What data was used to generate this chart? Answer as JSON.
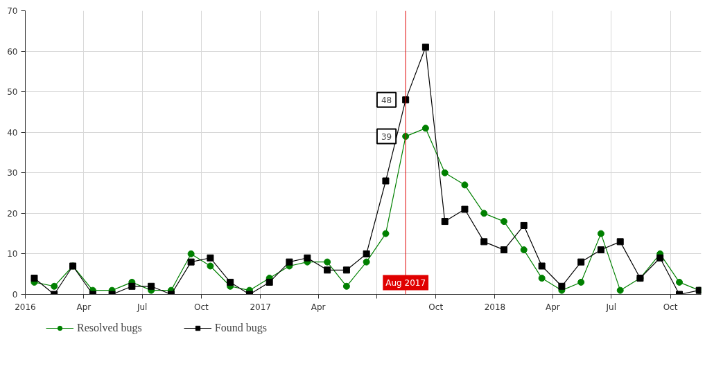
{
  "chart_data": {
    "type": "line",
    "x": [
      "2016-01-15",
      "2016-02-15",
      "2016-03-15",
      "2016-04-15",
      "2016-05-15",
      "2016-06-15",
      "2016-07-15",
      "2016-08-15",
      "2016-09-15",
      "2016-10-15",
      "2016-11-15",
      "2016-12-15",
      "2017-01-15",
      "2017-02-15",
      "2017-03-15",
      "2017-04-15",
      "2017-05-15",
      "2017-06-15",
      "2017-07-15",
      "2017-08-15",
      "2017-09-15",
      "2017-10-15",
      "2017-11-15",
      "2017-12-15",
      "2018-01-15",
      "2018-02-15",
      "2018-03-15",
      "2018-04-15",
      "2018-05-15",
      "2018-06-15",
      "2018-07-15",
      "2018-08-15",
      "2018-09-15",
      "2018-10-15",
      "2018-11-15"
    ],
    "series": [
      {
        "name": "Resolved bugs",
        "color": "#008000",
        "marker": "circle",
        "values": [
          3,
          2,
          7,
          1,
          1,
          3,
          1,
          1,
          10,
          7,
          2,
          1,
          4,
          7,
          8,
          8,
          2,
          8,
          15,
          39,
          41,
          30,
          27,
          20,
          18,
          11,
          4,
          1,
          3,
          15,
          1,
          4,
          10,
          3,
          1
        ]
      },
      {
        "name": "Found bugs",
        "color": "#000000",
        "marker": "square",
        "values": [
          4,
          0,
          7,
          0,
          0,
          2,
          2,
          0,
          8,
          9,
          3,
          0,
          3,
          8,
          9,
          6,
          6,
          10,
          28,
          48,
          61,
          18,
          21,
          13,
          11,
          17,
          7,
          2,
          8,
          11,
          13,
          4,
          9,
          0,
          1
        ]
      }
    ],
    "xlim": [
      "2016-01-01",
      "2018-11-18"
    ],
    "xticks": [
      {
        "value": "2016-01-01",
        "label": "2016"
      },
      {
        "value": "2016-04-01",
        "label": "Apr"
      },
      {
        "value": "2016-07-01",
        "label": "Jul"
      },
      {
        "value": "2016-10-01",
        "label": "Oct"
      },
      {
        "value": "2017-01-01",
        "label": "2017"
      },
      {
        "value": "2017-04-01",
        "label": "Apr"
      },
      {
        "value": "2017-07-01",
        "label": null
      },
      {
        "value": "2017-10-01",
        "label": "Oct"
      },
      {
        "value": "2018-01-01",
        "label": "2018"
      },
      {
        "value": "2018-04-01",
        "label": "Apr"
      },
      {
        "value": "2018-07-01",
        "label": "Jul"
      },
      {
        "value": "2018-10-01",
        "label": "Oct"
      }
    ],
    "ylim": [
      0,
      70
    ],
    "yticks": [
      0,
      10,
      20,
      30,
      40,
      50,
      60,
      70
    ],
    "ref_lines": [
      {
        "axis": "x",
        "value": "2017-08-15",
        "label": "Aug 2017",
        "color": "#e00000"
      }
    ],
    "annotations": [
      {
        "text": "48",
        "x": "2017-08-15",
        "y": 48
      },
      {
        "text": "39",
        "x": "2017-08-15",
        "y": 39
      }
    ],
    "grid": true,
    "legend": "bottom"
  }
}
